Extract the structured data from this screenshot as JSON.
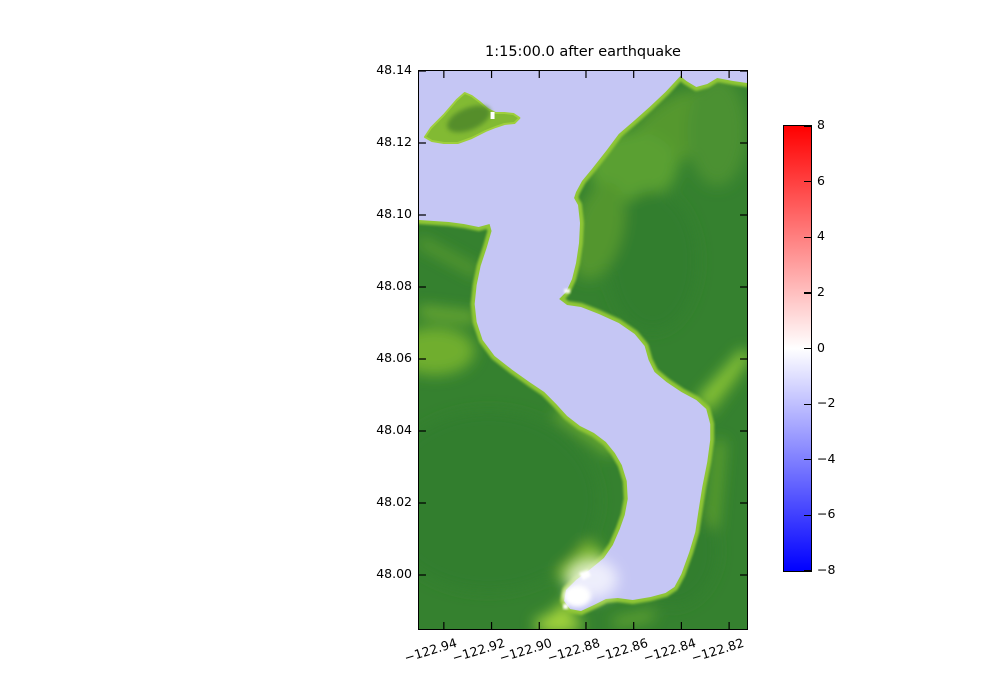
{
  "figure": {
    "title": "1:15:00.0 after earthquake",
    "background_color": "#ffffff"
  },
  "axes": {
    "y_tick_labels": [
      "48.14",
      "48.12",
      "48.10",
      "48.08",
      "48.06",
      "48.04",
      "48.02",
      "48.00"
    ],
    "x_tick_labels": [
      "−122.94",
      "−122.92",
      "−122.90",
      "−122.88",
      "−122.86",
      "−122.84",
      "−122.82"
    ]
  },
  "colorbar": {
    "tick_labels": [
      "8",
      "6",
      "4",
      "2",
      "0",
      "−2",
      "−4",
      "−6",
      "−8"
    ],
    "max_color": "#ff0000",
    "mid_color": "#ffffff",
    "min_color": "#0000ff"
  },
  "map": {
    "water_color": "#c5c6f4",
    "land_color": "#35812f",
    "shore_color": "#8fc636",
    "anomaly_color": "#ffffff"
  },
  "chart_data": {
    "type": "heatmap",
    "title": "1:15:00.0 after earthquake",
    "xlabel": "",
    "ylabel": "",
    "x_ticks": [
      -122.94,
      -122.92,
      -122.9,
      -122.88,
      -122.86,
      -122.84,
      -122.82
    ],
    "y_ticks": [
      48.14,
      48.12,
      48.1,
      48.08,
      48.06,
      48.04,
      48.02,
      48.0
    ],
    "x_range": [
      -122.951,
      -122.812
    ],
    "y_range": [
      47.985,
      48.14
    ],
    "colorbar": {
      "range": [
        -8,
        8
      ],
      "ticks": [
        8,
        6,
        4,
        2,
        0,
        -2,
        -4,
        -6,
        -8
      ],
      "colormap": "blue-white-red (bwr)",
      "position": "right"
    },
    "grid": false,
    "content": "Simulated water-surface elevation 75 minutes (1:15:00.0) after an earthquake over a winding coastal channel (approx. 122.95–122.81°W, 47.99–48.14°N). Open water reads ≈ −1.5 (pale blue-violet on the bwr colorbar). A small white patch (≈ 0) lies at the shoaling south end of the channel near (−122.885, 48.00), with tiny white spots at a cape tip near (−122.89, 48.075) and on the small island near (−122.92, 48.125). Land is shown in green elevation shades: dark green uplands, bright yellow-green low shorelines and valleys. Features: small island at top-left; large mainland on the upper right; broad landmass covering the lower left; channel enters at top center, bends southeast then south, ending in a small bay at bottom center-right."
  }
}
